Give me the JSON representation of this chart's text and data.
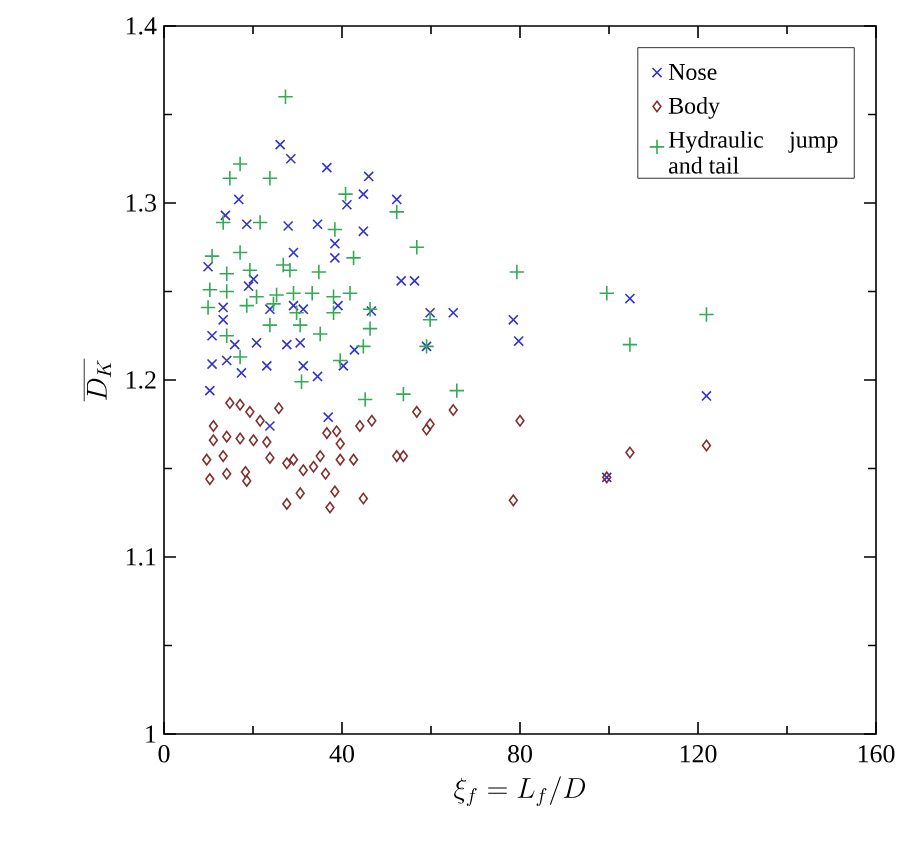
{
  "chart_data": {
    "type": "scatter",
    "xlabel": "\\xi_f = L_f/D",
    "ylabel": "\\overline{D_K}",
    "xlim": [
      0,
      160
    ],
    "ylim": [
      1,
      1.4
    ],
    "xticks": [
      0,
      40,
      80,
      120,
      160
    ],
    "yticks": [
      1,
      1.1,
      1.2,
      1.3,
      1.4
    ],
    "grid": false,
    "legend": "top right",
    "series": [
      {
        "name": "Nose",
        "color": "#3333cc",
        "marker": "cross",
        "x": [
          26.1,
          28.5,
          36.6,
          46.0,
          44.8,
          41.1,
          52.3,
          13.8,
          16.8,
          18.6,
          27.9,
          34.5,
          44.8,
          38.4,
          38.4,
          29.1,
          9.9,
          19.0,
          20.1,
          53.3,
          56.3,
          13.3,
          23.8,
          29.1,
          31.3,
          39.1,
          46.6,
          59.8,
          65.0,
          78.5,
          79.7,
          13.3,
          10.8,
          15.9,
          20.8,
          27.6,
          30.6,
          42.8,
          59.0,
          10.8,
          14.1,
          17.4,
          23.1,
          31.3,
          34.5,
          40.3,
          10.3,
          23.8,
          36.9,
          104.7,
          99.5,
          121.9
        ],
        "values": [
          1.333,
          1.325,
          1.32,
          1.315,
          1.305,
          1.299,
          1.302,
          1.293,
          1.302,
          1.288,
          1.287,
          1.288,
          1.284,
          1.277,
          1.269,
          1.272,
          1.264,
          1.253,
          1.257,
          1.256,
          1.256,
          1.241,
          1.24,
          1.242,
          1.24,
          1.242,
          1.239,
          1.238,
          1.238,
          1.234,
          1.222,
          1.234,
          1.225,
          1.22,
          1.221,
          1.22,
          1.221,
          1.217,
          1.219,
          1.209,
          1.211,
          1.204,
          1.208,
          1.208,
          1.202,
          1.208,
          1.194,
          1.174,
          1.179,
          1.246,
          1.145,
          1.191
        ]
      },
      {
        "name": "Body",
        "color": "#7f2f2f",
        "marker": "diamond",
        "x": [
          14.8,
          17.1,
          19.3,
          21.6,
          25.8,
          11.1,
          11.1,
          14.1,
          17.1,
          20.1,
          23.1,
          9.6,
          13.3,
          10.3,
          14.1,
          18.3,
          18.6,
          23.8,
          27.6,
          29.1,
          31.3,
          33.6,
          35.1,
          36.6,
          38.8,
          39.6,
          39.6,
          42.6,
          44.0,
          46.7,
          30.6,
          27.6,
          38.4,
          37.3,
          44.8,
          36.3,
          52.3,
          53.8,
          56.8,
          59.0,
          59.8,
          65.0,
          80.0,
          78.5,
          104.7,
          121.9,
          99.5
        ],
        "values": [
          1.187,
          1.186,
          1.182,
          1.177,
          1.184,
          1.174,
          1.166,
          1.168,
          1.167,
          1.166,
          1.165,
          1.155,
          1.157,
          1.144,
          1.147,
          1.148,
          1.143,
          1.156,
          1.153,
          1.155,
          1.149,
          1.151,
          1.157,
          1.17,
          1.171,
          1.164,
          1.155,
          1.155,
          1.174,
          1.177,
          1.136,
          1.13,
          1.137,
          1.128,
          1.133,
          1.147,
          1.157,
          1.157,
          1.182,
          1.172,
          1.175,
          1.183,
          1.177,
          1.132,
          1.159,
          1.163,
          1.145
        ]
      },
      {
        "name": "Hydraulic jump and tail",
        "color": "#33aa55",
        "marker": "plus",
        "x": [
          27.3,
          17.1,
          14.8,
          23.8,
          40.8,
          52.3,
          13.3,
          21.6,
          38.4,
          56.8,
          42.6,
          10.8,
          17.1,
          26.8,
          14.1,
          19.3,
          28.3,
          34.8,
          79.3,
          10.3,
          14.1,
          20.8,
          25.3,
          29.1,
          33.3,
          38.1,
          41.8,
          9.9,
          18.6,
          24.6,
          29.8,
          38.1,
          46.3,
          23.8,
          30.6,
          35.1,
          46.3,
          59.8,
          14.1,
          17.1,
          39.6,
          44.8,
          59.0,
          30.9,
          45.2,
          53.8,
          65.8,
          99.5,
          104.7,
          121.9
        ],
        "values": [
          1.36,
          1.322,
          1.314,
          1.314,
          1.305,
          1.295,
          1.289,
          1.289,
          1.285,
          1.275,
          1.269,
          1.27,
          1.272,
          1.265,
          1.26,
          1.262,
          1.262,
          1.261,
          1.261,
          1.251,
          1.25,
          1.247,
          1.248,
          1.249,
          1.249,
          1.247,
          1.249,
          1.241,
          1.242,
          1.243,
          1.238,
          1.238,
          1.24,
          1.231,
          1.231,
          1.226,
          1.229,
          1.234,
          1.225,
          1.213,
          1.211,
          1.219,
          1.219,
          1.199,
          1.189,
          1.192,
          1.194,
          1.249,
          1.22,
          1.237
        ]
      }
    ]
  }
}
